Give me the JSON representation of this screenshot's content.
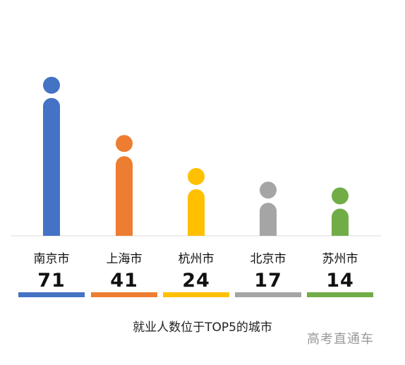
{
  "chart_data": {
    "type": "bar",
    "categories": [
      "南京市",
      "上海市",
      "杭州市",
      "北京市",
      "苏州市"
    ],
    "values": [
      71,
      41,
      24,
      17,
      14
    ],
    "value_labels": [
      "71",
      "41",
      "24",
      "17",
      "14"
    ],
    "colors": [
      "#4472c4",
      "#ed7d31",
      "#ffc000",
      "#a5a5a5",
      "#70ad47"
    ],
    "xlabel": "就业人数位于TOP5的城市",
    "ylabel": "",
    "grid": false,
    "legend": "none"
  },
  "caption": "就业人数位于TOP5的城市",
  "watermark": "高考直通车"
}
